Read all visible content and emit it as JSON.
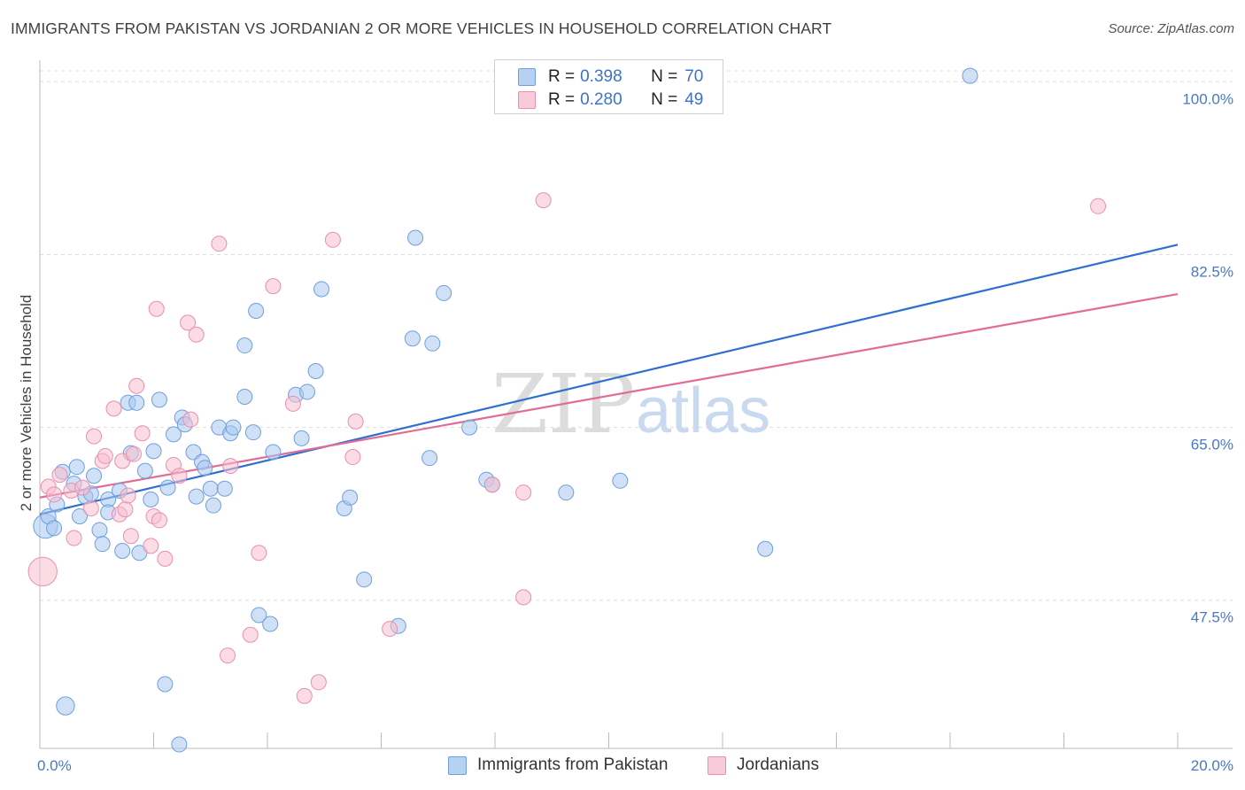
{
  "title": "IMMIGRANTS FROM PAKISTAN VS JORDANIAN 2 OR MORE VEHICLES IN HOUSEHOLD CORRELATION CHART",
  "source": "Source: ZipAtlas.com",
  "watermark": {
    "zip": "ZIP",
    "atlas": "atlas"
  },
  "legend": {
    "series1": {
      "r_label": "R =",
      "r_value": "0.398",
      "n_label": "N =",
      "n_value": "70"
    },
    "series2": {
      "r_label": "R =",
      "r_value": "0.280",
      "n_label": "N =",
      "n_value": "49"
    }
  },
  "bottom_legend": {
    "series1": "Immigrants from Pakistan",
    "series2": "Jordanians"
  },
  "colors": {
    "blue_fill": "#a9c8f0",
    "blue_stroke": "#6f9fdc",
    "blue_line": "#2e6fd0",
    "pink_fill": "#f7bfd0",
    "pink_stroke": "#ea8fad",
    "pink_line": "#e06c97",
    "grid": "#dddddd",
    "tick_text": "#4a78c8"
  },
  "chart_data": {
    "type": "scatter",
    "title": "IMMIGRANTS FROM PAKISTAN VS JORDANIAN 2 OR MORE VEHICLES IN HOUSEHOLD CORRELATION CHART",
    "xlabel": "",
    "ylabel": "2 or more Vehicles in Household",
    "xlim": [
      0,
      20
    ],
    "ylim": [
      32.5,
      102
    ],
    "x_tick_labels": [
      {
        "value": 0,
        "label": "0.0%"
      },
      {
        "value": 20,
        "label": "20.0%"
      }
    ],
    "y_ticks": [
      {
        "value": 47.5,
        "label": "47.5%"
      },
      {
        "value": 65.0,
        "label": "65.0%"
      },
      {
        "value": 82.5,
        "label": "82.5%"
      },
      {
        "value": 100.0,
        "label": "100.0%"
      }
    ],
    "series": [
      {
        "name": "Immigrants from Pakistan",
        "r": 0.398,
        "n": 70,
        "trend": {
          "x0": 0,
          "y0": 56.2,
          "x1": 20,
          "y1": 83.5
        },
        "points": [
          [
            0.1,
            55.0,
            1.6
          ],
          [
            0.15,
            56.0,
            1.0
          ],
          [
            0.25,
            54.8,
            1.0
          ],
          [
            0.3,
            57.2,
            1.0
          ],
          [
            0.4,
            60.5,
            1.0
          ],
          [
            0.45,
            36.8,
            1.2
          ],
          [
            0.6,
            59.3,
            1.0
          ],
          [
            0.65,
            61.0,
            1.0
          ],
          [
            0.7,
            56.0,
            1.0
          ],
          [
            0.8,
            58.0,
            1.0
          ],
          [
            0.9,
            58.3,
            1.0
          ],
          [
            0.95,
            60.1,
            1.0
          ],
          [
            1.05,
            54.6,
            1.0
          ],
          [
            1.1,
            53.2,
            1.0
          ],
          [
            1.2,
            57.7,
            1.0
          ],
          [
            1.2,
            56.4,
            1.0
          ],
          [
            1.4,
            58.6,
            1.0
          ],
          [
            1.45,
            52.5,
            1.0
          ],
          [
            1.55,
            67.5,
            1.0
          ],
          [
            1.6,
            62.4,
            1.0
          ],
          [
            1.7,
            67.5,
            1.0
          ],
          [
            1.75,
            52.3,
            1.0
          ],
          [
            1.85,
            60.6,
            1.0
          ],
          [
            1.95,
            57.7,
            1.0
          ],
          [
            2.0,
            62.6,
            1.0
          ],
          [
            2.1,
            67.8,
            1.0
          ],
          [
            2.2,
            39.0,
            1.0
          ],
          [
            2.25,
            58.9,
            1.0
          ],
          [
            2.35,
            64.3,
            1.0
          ],
          [
            2.45,
            32.9,
            1.0
          ],
          [
            2.5,
            66.0,
            1.0
          ],
          [
            2.55,
            65.3,
            1.0
          ],
          [
            2.7,
            62.5,
            1.0
          ],
          [
            2.75,
            58.0,
            1.0
          ],
          [
            2.85,
            61.5,
            1.0
          ],
          [
            2.9,
            60.9,
            1.0
          ],
          [
            3.0,
            58.8,
            1.0
          ],
          [
            3.05,
            57.1,
            1.0
          ],
          [
            3.15,
            65.0,
            1.0
          ],
          [
            3.25,
            58.8,
            1.0
          ],
          [
            3.35,
            64.4,
            1.0
          ],
          [
            3.4,
            65.0,
            1.0
          ],
          [
            3.6,
            73.3,
            1.0
          ],
          [
            3.6,
            68.1,
            1.0
          ],
          [
            3.75,
            64.5,
            1.0
          ],
          [
            3.8,
            76.8,
            1.0
          ],
          [
            3.85,
            46.0,
            1.0
          ],
          [
            4.05,
            45.1,
            1.0
          ],
          [
            4.1,
            62.5,
            1.0
          ],
          [
            4.5,
            68.3,
            1.0
          ],
          [
            4.6,
            63.9,
            1.0
          ],
          [
            4.7,
            68.6,
            1.0
          ],
          [
            4.85,
            70.7,
            1.0
          ],
          [
            4.95,
            79.0,
            1.0
          ],
          [
            5.35,
            56.8,
            1.0
          ],
          [
            5.45,
            57.9,
            1.0
          ],
          [
            5.7,
            49.6,
            1.0
          ],
          [
            6.3,
            44.9,
            1.0
          ],
          [
            6.55,
            74.0,
            1.0
          ],
          [
            6.6,
            84.2,
            1.0
          ],
          [
            6.85,
            61.9,
            1.0
          ],
          [
            6.9,
            73.5,
            1.0
          ],
          [
            7.1,
            78.6,
            1.0
          ],
          [
            7.55,
            65.0,
            1.0
          ],
          [
            7.85,
            59.7,
            1.0
          ],
          [
            7.95,
            59.2,
            1.0
          ],
          [
            9.25,
            58.4,
            1.0
          ],
          [
            10.2,
            59.6,
            1.0
          ],
          [
            12.75,
            52.7,
            1.0
          ],
          [
            16.35,
            100.6,
            1.0
          ]
        ]
      },
      {
        "name": "Jordanians",
        "r": 0.28,
        "n": 49,
        "trend": {
          "x0": 0,
          "y0": 57.9,
          "x1": 20,
          "y1": 78.5
        },
        "points": [
          [
            0.05,
            50.4,
            1.9
          ],
          [
            0.15,
            59.0,
            1.0
          ],
          [
            0.25,
            58.2,
            1.0
          ],
          [
            0.35,
            60.2,
            1.0
          ],
          [
            0.55,
            58.6,
            1.0
          ],
          [
            0.6,
            53.8,
            1.0
          ],
          [
            0.75,
            58.9,
            1.0
          ],
          [
            0.9,
            56.8,
            1.0
          ],
          [
            0.95,
            64.1,
            1.0
          ],
          [
            1.1,
            61.6,
            1.0
          ],
          [
            1.15,
            62.1,
            1.0
          ],
          [
            1.3,
            66.9,
            1.0
          ],
          [
            1.4,
            56.2,
            1.0
          ],
          [
            1.5,
            56.7,
            1.0
          ],
          [
            1.45,
            61.6,
            1.0
          ],
          [
            1.55,
            58.1,
            1.0
          ],
          [
            1.6,
            54.0,
            1.0
          ],
          [
            1.65,
            62.3,
            1.0
          ],
          [
            1.7,
            69.2,
            1.0
          ],
          [
            1.8,
            64.4,
            1.0
          ],
          [
            1.95,
            53.0,
            1.0
          ],
          [
            2.0,
            56.0,
            1.0
          ],
          [
            2.05,
            77.0,
            1.0
          ],
          [
            2.1,
            55.6,
            1.0
          ],
          [
            2.2,
            51.7,
            1.0
          ],
          [
            2.35,
            61.2,
            1.0
          ],
          [
            2.45,
            60.1,
            1.0
          ],
          [
            2.6,
            75.6,
            1.0
          ],
          [
            2.65,
            65.8,
            1.0
          ],
          [
            2.75,
            74.4,
            1.0
          ],
          [
            3.15,
            83.6,
            1.0
          ],
          [
            3.3,
            41.9,
            1.0
          ],
          [
            3.35,
            61.1,
            1.0
          ],
          [
            3.7,
            44.0,
            1.0
          ],
          [
            3.85,
            52.3,
            1.0
          ],
          [
            4.1,
            79.3,
            1.0
          ],
          [
            4.45,
            67.4,
            1.0
          ],
          [
            4.65,
            37.8,
            1.0
          ],
          [
            4.9,
            39.2,
            1.0
          ],
          [
            5.15,
            84.0,
            1.0
          ],
          [
            5.5,
            62.0,
            1.0
          ],
          [
            5.55,
            65.6,
            1.0
          ],
          [
            6.15,
            44.6,
            1.0
          ],
          [
            7.95,
            59.2,
            1.0
          ],
          [
            8.5,
            47.8,
            1.0
          ],
          [
            8.5,
            58.4,
            1.0
          ],
          [
            8.85,
            88.0,
            1.0
          ],
          [
            18.6,
            87.4,
            1.0
          ],
          [
            8.7,
            59.0,
            0.0
          ]
        ]
      }
    ]
  }
}
